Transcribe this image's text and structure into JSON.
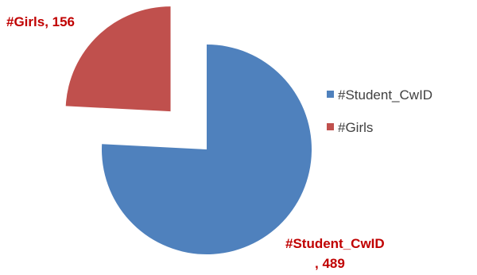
{
  "chart_data": {
    "type": "pie",
    "series": [
      {
        "name": "#Student_CwID",
        "value": 489,
        "color": "#4f81bd",
        "label_line1": "#Student_CwID",
        "label_line2": ", 489",
        "exploded": false
      },
      {
        "name": "#Girls",
        "value": 156,
        "color": "#c0504d",
        "label_line1": "#Girls,  156",
        "exploded": true
      }
    ],
    "legend": {
      "position": "right",
      "entries": [
        "#Student_CwID",
        "#Girls"
      ]
    },
    "label_color": "#c00000"
  }
}
